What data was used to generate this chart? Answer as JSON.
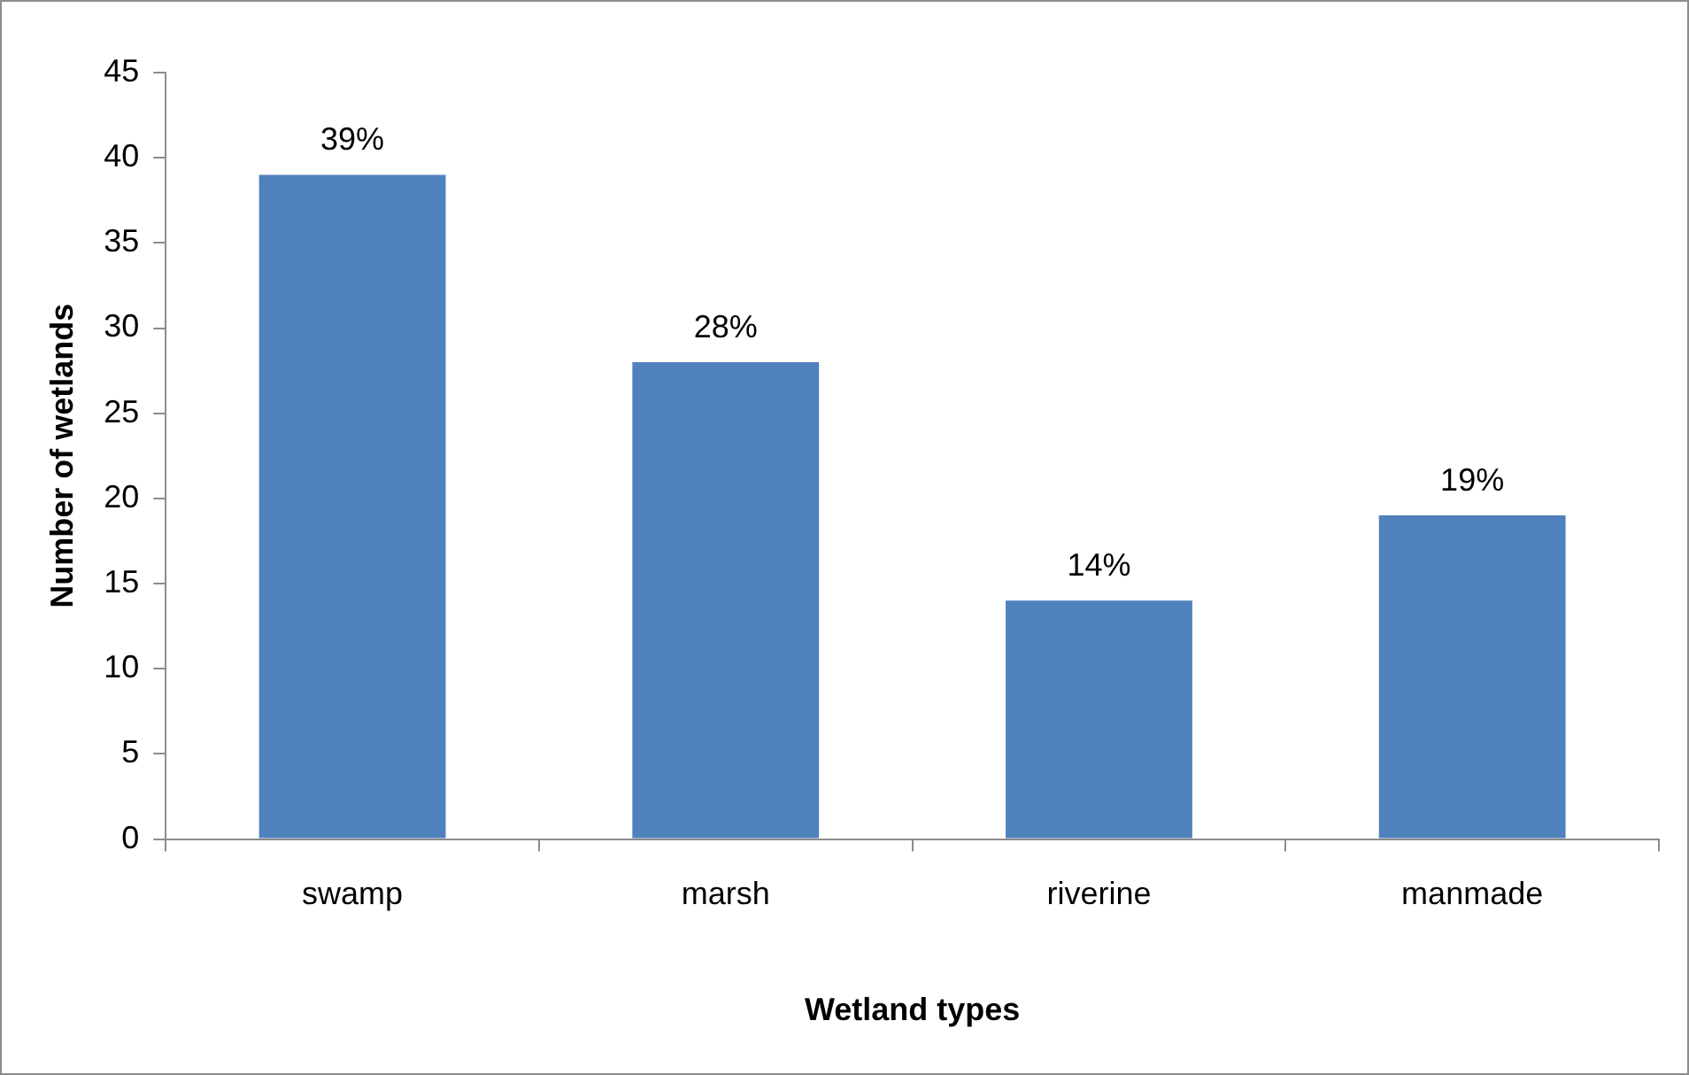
{
  "chart_data": {
    "type": "bar",
    "xlabel": "Wetland types",
    "ylabel": "Number of wetlands",
    "categories": [
      "swamp",
      "marsh",
      "riverine",
      "manmade"
    ],
    "values": [
      39,
      28,
      14,
      19
    ],
    "color": "#4f81bd",
    "value_labels": [
      "39%",
      "28%",
      "14%",
      "19%"
    ],
    "ylim": [
      0,
      45
    ],
    "yticks": [
      0,
      5,
      10,
      15,
      20,
      25,
      30,
      35,
      40,
      45
    ],
    "grid": false,
    "legend": false
  }
}
